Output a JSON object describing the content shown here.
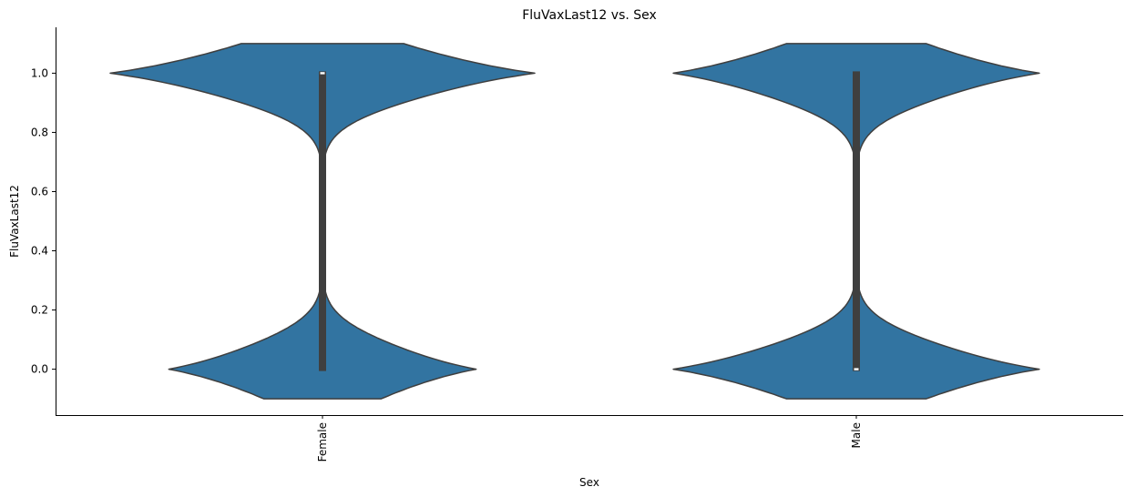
{
  "chart_data": {
    "type": "violin",
    "title": "FluVaxLast12 vs. Sex",
    "xlabel": "Sex",
    "ylabel": "FluVaxLast12",
    "categories": [
      "Female",
      "Male"
    ],
    "ylim": [
      -0.155,
      1.155
    ],
    "yticks": [
      0.0,
      0.2,
      0.4,
      0.6,
      0.8,
      1.0
    ],
    "ytick_labels": [
      "0.0",
      "0.2",
      "0.4",
      "0.6",
      "0.8",
      "1.0"
    ],
    "xtick_rotation": 90,
    "grid": false,
    "colors": {
      "violin_fill": "#3274a1",
      "violin_edge": "#3f3f3f",
      "box": "#3f3f3f",
      "median": "#ffffff"
    },
    "violins": [
      {
        "category": "Female",
        "upper_mode_share": 0.58,
        "lower_mode_share": 0.42,
        "box": {
          "q1": 0.0,
          "median": 1.0,
          "q3": 1.0,
          "whisker_low": 0.0,
          "whisker_high": 1.0
        }
      },
      {
        "category": "Male",
        "upper_mode_share": 0.5,
        "lower_mode_share": 0.5,
        "box": {
          "q1": 0.0,
          "median": 0.0,
          "q3": 1.0,
          "whisker_low": 0.0,
          "whisker_high": 1.0
        }
      }
    ]
  }
}
